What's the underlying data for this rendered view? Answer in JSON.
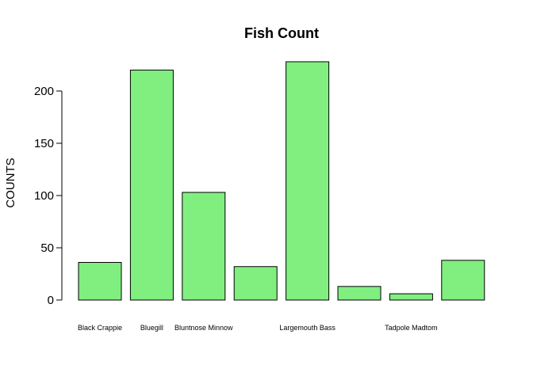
{
  "chart_data": {
    "type": "bar",
    "title": "Fish Count",
    "xlabel": "",
    "ylabel": "COUNTS",
    "categories": [
      "Black Crappie",
      "Bluegill",
      "Bluntnose Minnow",
      "",
      "Largemouth Bass",
      "",
      "Tadpole Madtom",
      ""
    ],
    "values": [
      36,
      220,
      103,
      32,
      228,
      13,
      6,
      38
    ],
    "yticks": [
      0,
      50,
      100,
      150,
      200
    ],
    "ylim": [
      0,
      228
    ],
    "grid": false,
    "bar_color": "#80ef80"
  }
}
